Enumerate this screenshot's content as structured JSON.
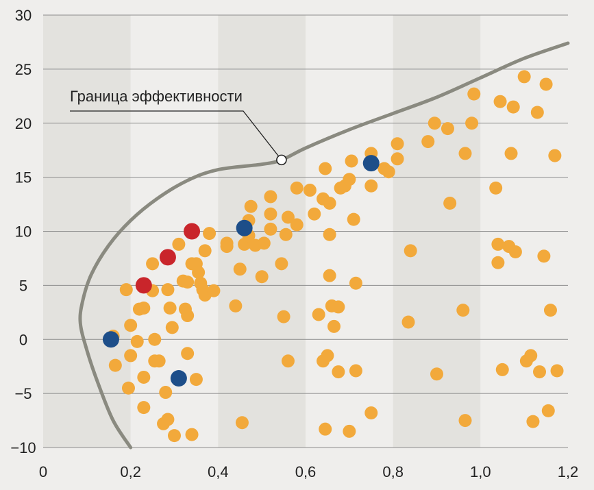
{
  "chart_data": {
    "type": "scatter",
    "xlim": [
      0,
      1.2
    ],
    "ylim": [
      -10,
      30
    ],
    "x_ticks": [
      "0",
      "0,2",
      "0,4",
      "0,6",
      "0,8",
      "1,0",
      "1,2"
    ],
    "y_ticks": [
      "30",
      "25",
      "20",
      "15",
      "10",
      "5",
      "0",
      "−5",
      "−10"
    ],
    "grid": true,
    "colors": {
      "orange": "#f2a93b",
      "red": "#c9252b",
      "blue": "#1d4e89",
      "frontier": "#8a8a80",
      "band_dark": "#e3e2de",
      "band_light": "#efeeec"
    },
    "annotation": {
      "text": "Граница эффективности",
      "point": [
        0.545,
        16.6
      ]
    },
    "frontier_curve": [
      [
        0.2,
        -10
      ],
      [
        0.16,
        -7.5
      ],
      [
        0.125,
        -4
      ],
      [
        0.1,
        -1
      ],
      [
        0.085,
        1.5
      ],
      [
        0.09,
        3.5
      ],
      [
        0.11,
        6
      ],
      [
        0.15,
        8.7
      ],
      [
        0.2,
        11
      ],
      [
        0.26,
        13
      ],
      [
        0.33,
        14.7
      ],
      [
        0.4,
        15.7
      ],
      [
        0.5,
        16.2
      ],
      [
        0.545,
        16.6
      ],
      [
        0.6,
        17.7
      ],
      [
        0.7,
        19.4
      ],
      [
        0.8,
        20.9
      ],
      [
        0.9,
        22.4
      ],
      [
        1.0,
        24.2
      ],
      [
        1.1,
        26.0
      ],
      [
        1.2,
        27.4
      ]
    ],
    "series": [
      {
        "color": "orange",
        "points": [
          [
            0.16,
            0.3
          ],
          [
            0.165,
            -2.4
          ],
          [
            0.19,
            4.6
          ],
          [
            0.195,
            -4.5
          ],
          [
            0.2,
            1.3
          ],
          [
            0.2,
            -1.5
          ],
          [
            0.215,
            -0.2
          ],
          [
            0.22,
            2.8
          ],
          [
            0.23,
            2.9
          ],
          [
            0.23,
            -3.5
          ],
          [
            0.23,
            -6.3
          ],
          [
            0.25,
            7.0
          ],
          [
            0.25,
            4.5
          ],
          [
            0.255,
            0.0
          ],
          [
            0.255,
            -2.0
          ],
          [
            0.265,
            -2.0
          ],
          [
            0.275,
            -7.8
          ],
          [
            0.28,
            -4.9
          ],
          [
            0.285,
            4.6
          ],
          [
            0.285,
            -7.4
          ],
          [
            0.29,
            2.9
          ],
          [
            0.295,
            1.1
          ],
          [
            0.3,
            -8.9
          ],
          [
            0.31,
            8.8
          ],
          [
            0.32,
            5.4
          ],
          [
            0.325,
            2.8
          ],
          [
            0.33,
            2.2
          ],
          [
            0.33,
            5.3
          ],
          [
            0.33,
            -1.3
          ],
          [
            0.34,
            7.0
          ],
          [
            0.34,
            -8.8
          ],
          [
            0.35,
            7.0
          ],
          [
            0.35,
            -3.7
          ],
          [
            0.355,
            6.2
          ],
          [
            0.36,
            5.2
          ],
          [
            0.365,
            4.6
          ],
          [
            0.37,
            8.2
          ],
          [
            0.37,
            4.1
          ],
          [
            0.38,
            9.8
          ],
          [
            0.39,
            4.5
          ],
          [
            0.42,
            8.6
          ],
          [
            0.42,
            8.9
          ],
          [
            0.44,
            3.1
          ],
          [
            0.45,
            6.5
          ],
          [
            0.455,
            -7.7
          ],
          [
            0.46,
            8.8
          ],
          [
            0.47,
            11.0
          ],
          [
            0.47,
            9.6
          ],
          [
            0.475,
            12.3
          ],
          [
            0.485,
            8.7
          ],
          [
            0.5,
            5.8
          ],
          [
            0.505,
            8.9
          ],
          [
            0.52,
            13.2
          ],
          [
            0.52,
            11.6
          ],
          [
            0.52,
            10.2
          ],
          [
            0.545,
            7.0
          ],
          [
            0.55,
            2.1
          ],
          [
            0.555,
            9.7
          ],
          [
            0.56,
            11.3
          ],
          [
            0.56,
            -2.0
          ],
          [
            0.58,
            14.0
          ],
          [
            0.58,
            10.6
          ],
          [
            0.61,
            13.8
          ],
          [
            0.62,
            11.6
          ],
          [
            0.63,
            2.3
          ],
          [
            0.64,
            13.0
          ],
          [
            0.64,
            -2.0
          ],
          [
            0.645,
            15.8
          ],
          [
            0.645,
            -8.3
          ],
          [
            0.65,
            -1.5
          ],
          [
            0.655,
            12.6
          ],
          [
            0.655,
            9.7
          ],
          [
            0.655,
            5.9
          ],
          [
            0.66,
            3.1
          ],
          [
            0.665,
            1.2
          ],
          [
            0.675,
            3.0
          ],
          [
            0.675,
            -3.0
          ],
          [
            0.68,
            14.0
          ],
          [
            0.69,
            14.2
          ],
          [
            0.7,
            14.8
          ],
          [
            0.7,
            -8.5
          ],
          [
            0.705,
            16.5
          ],
          [
            0.71,
            11.1
          ],
          [
            0.715,
            5.2
          ],
          [
            0.715,
            -2.9
          ],
          [
            0.75,
            17.2
          ],
          [
            0.75,
            14.2
          ],
          [
            0.75,
            -6.8
          ],
          [
            0.78,
            15.8
          ],
          [
            0.79,
            15.5
          ],
          [
            0.81,
            18.1
          ],
          [
            0.81,
            16.7
          ],
          [
            0.835,
            1.6
          ],
          [
            0.84,
            8.2
          ],
          [
            0.88,
            18.3
          ],
          [
            0.895,
            20.0
          ],
          [
            0.9,
            -3.2
          ],
          [
            0.925,
            19.5
          ],
          [
            0.93,
            12.6
          ],
          [
            0.96,
            2.7
          ],
          [
            0.965,
            17.2
          ],
          [
            0.965,
            -7.5
          ],
          [
            0.98,
            20.0
          ],
          [
            0.985,
            22.7
          ],
          [
            1.035,
            14.0
          ],
          [
            1.04,
            8.8
          ],
          [
            1.04,
            7.1
          ],
          [
            1.045,
            22.0
          ],
          [
            1.05,
            -2.8
          ],
          [
            1.065,
            8.6
          ],
          [
            1.07,
            17.2
          ],
          [
            1.075,
            21.5
          ],
          [
            1.08,
            8.1
          ],
          [
            1.1,
            24.3
          ],
          [
            1.105,
            -2.0
          ],
          [
            1.115,
            -1.5
          ],
          [
            1.12,
            -7.6
          ],
          [
            1.13,
            21.0
          ],
          [
            1.135,
            -3.0
          ],
          [
            1.145,
            7.7
          ],
          [
            1.15,
            23.6
          ],
          [
            1.155,
            -6.6
          ],
          [
            1.16,
            2.7
          ],
          [
            1.17,
            17.0
          ],
          [
            1.175,
            -2.9
          ]
        ]
      },
      {
        "color": "red",
        "points": [
          [
            0.23,
            5.0
          ],
          [
            0.285,
            7.6
          ],
          [
            0.34,
            10.0
          ]
        ]
      },
      {
        "color": "blue",
        "points": [
          [
            0.155,
            0.0
          ],
          [
            0.31,
            -3.6
          ],
          [
            0.46,
            10.3
          ],
          [
            0.75,
            16.3
          ]
        ]
      }
    ]
  }
}
